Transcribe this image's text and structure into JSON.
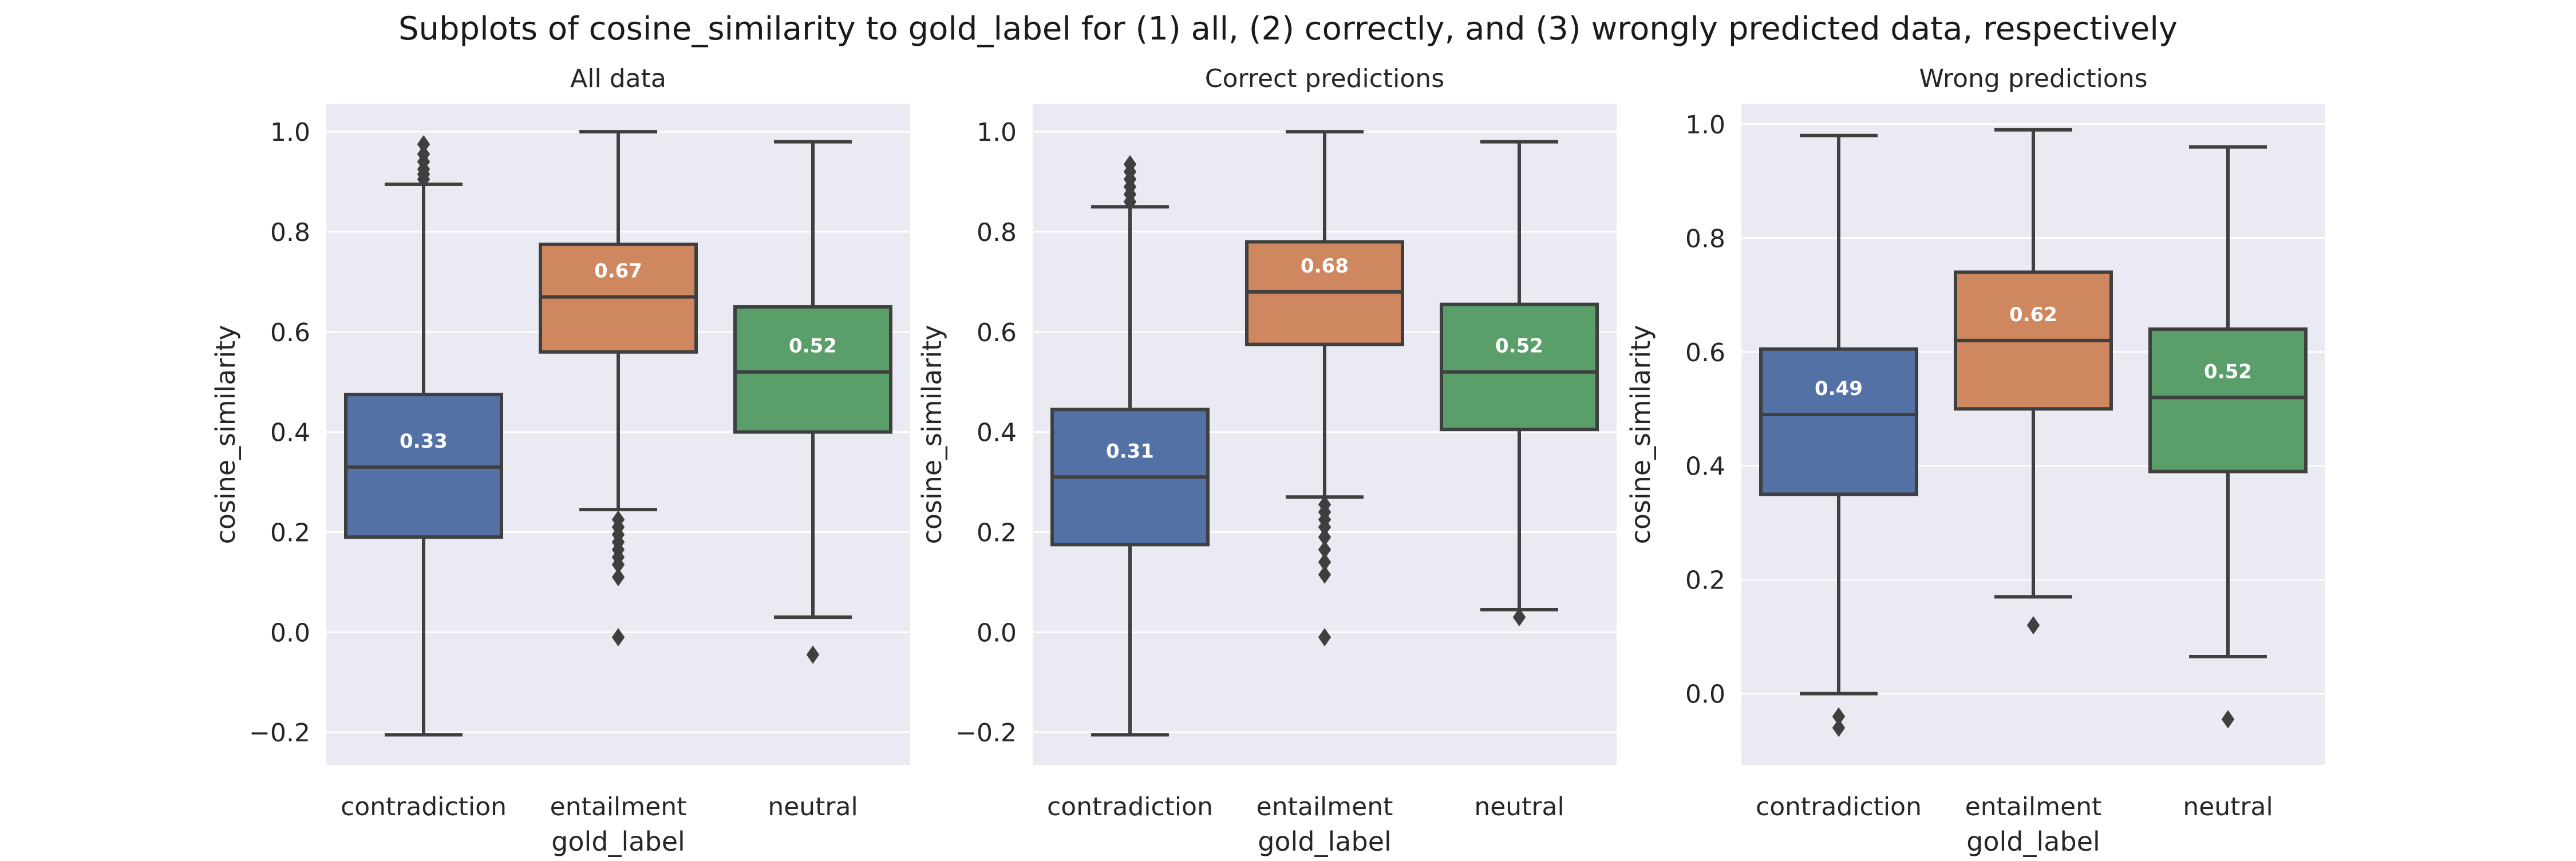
{
  "figure": {
    "suptitle": "Subplots of cosine_similarity to gold_label for (1) all, (2) correctly, and (3) wrongly predicted data, respectively"
  },
  "colors": {
    "background": "#eaeaf2",
    "grid": "#ffffff",
    "line": "#3f3f3f",
    "contradiction": "#5471a5",
    "entailment": "#cf875f",
    "neutral": "#5a9e6a"
  },
  "chart_data": [
    {
      "type": "box",
      "title": "All data",
      "xlabel": "gold_label",
      "ylabel": "cosine_similarity",
      "ylim": [
        -0.265,
        1.055
      ],
      "yticks": [
        -0.2,
        0.0,
        0.2,
        0.4,
        0.6,
        0.8,
        1.0
      ],
      "ytick_labels": [
        "−0.2",
        "0.0",
        "0.2",
        "0.4",
        "0.6",
        "0.8",
        "1.0"
      ],
      "categories": [
        "contradiction",
        "entailment",
        "neutral"
      ],
      "boxes": [
        {
          "category": "contradiction",
          "whisker_low": -0.205,
          "q1": 0.19,
          "median": 0.33,
          "q3": 0.475,
          "whisker_high": 0.895,
          "outliers": [
            0.905,
            0.915,
            0.925,
            0.94,
            0.955,
            0.975
          ],
          "median_label": "0.33"
        },
        {
          "category": "entailment",
          "whisker_low": 0.245,
          "q1": 0.56,
          "median": 0.67,
          "q3": 0.775,
          "whisker_high": 1.0,
          "outliers": [
            0.225,
            0.21,
            0.195,
            0.18,
            0.165,
            0.15,
            0.135,
            0.11,
            -0.01
          ],
          "median_label": "0.67"
        },
        {
          "category": "neutral",
          "whisker_low": 0.03,
          "q1": 0.4,
          "median": 0.52,
          "q3": 0.65,
          "whisker_high": 0.98,
          "outliers": [
            -0.045
          ],
          "median_label": "0.52"
        }
      ]
    },
    {
      "type": "box",
      "title": "Correct predictions",
      "xlabel": "gold_label",
      "ylabel": "cosine_similarity",
      "ylim": [
        -0.265,
        1.055
      ],
      "yticks": [
        -0.2,
        0.0,
        0.2,
        0.4,
        0.6,
        0.8,
        1.0
      ],
      "ytick_labels": [
        "−0.2",
        "0.0",
        "0.2",
        "0.4",
        "0.6",
        "0.8",
        "1.0"
      ],
      "categories": [
        "contradiction",
        "entailment",
        "neutral"
      ],
      "boxes": [
        {
          "category": "contradiction",
          "whisker_low": -0.205,
          "q1": 0.175,
          "median": 0.31,
          "q3": 0.445,
          "whisker_high": 0.85,
          "outliers": [
            0.86,
            0.875,
            0.89,
            0.905,
            0.92,
            0.935
          ],
          "median_label": "0.31"
        },
        {
          "category": "entailment",
          "whisker_low": 0.27,
          "q1": 0.575,
          "median": 0.68,
          "q3": 0.78,
          "whisker_high": 1.0,
          "outliers": [
            0.255,
            0.24,
            0.225,
            0.21,
            0.19,
            0.165,
            0.14,
            0.115,
            -0.01
          ],
          "median_label": "0.68"
        },
        {
          "category": "neutral",
          "whisker_low": 0.045,
          "q1": 0.405,
          "median": 0.52,
          "q3": 0.655,
          "whisker_high": 0.98,
          "outliers": [
            0.03
          ],
          "median_label": "0.52"
        }
      ]
    },
    {
      "type": "box",
      "title": "Wrong predictions",
      "xlabel": "gold_label",
      "ylabel": "cosine_similarity",
      "ylim": [
        -0.125,
        1.035
      ],
      "yticks": [
        0.0,
        0.2,
        0.4,
        0.6,
        0.8,
        1.0
      ],
      "ytick_labels": [
        "0.0",
        "0.2",
        "0.4",
        "0.6",
        "0.8",
        "1.0"
      ],
      "categories": [
        "contradiction",
        "entailment",
        "neutral"
      ],
      "boxes": [
        {
          "category": "contradiction",
          "whisker_low": 0.0,
          "q1": 0.35,
          "median": 0.49,
          "q3": 0.605,
          "whisker_high": 0.98,
          "outliers": [
            -0.04,
            -0.06
          ],
          "median_label": "0.49"
        },
        {
          "category": "entailment",
          "whisker_low": 0.17,
          "q1": 0.5,
          "median": 0.62,
          "q3": 0.74,
          "whisker_high": 0.99,
          "outliers": [
            0.12
          ],
          "median_label": "0.62"
        },
        {
          "category": "neutral",
          "whisker_low": 0.065,
          "q1": 0.39,
          "median": 0.52,
          "q3": 0.64,
          "whisker_high": 0.96,
          "outliers": [
            -0.045
          ],
          "median_label": "0.52"
        }
      ]
    }
  ]
}
